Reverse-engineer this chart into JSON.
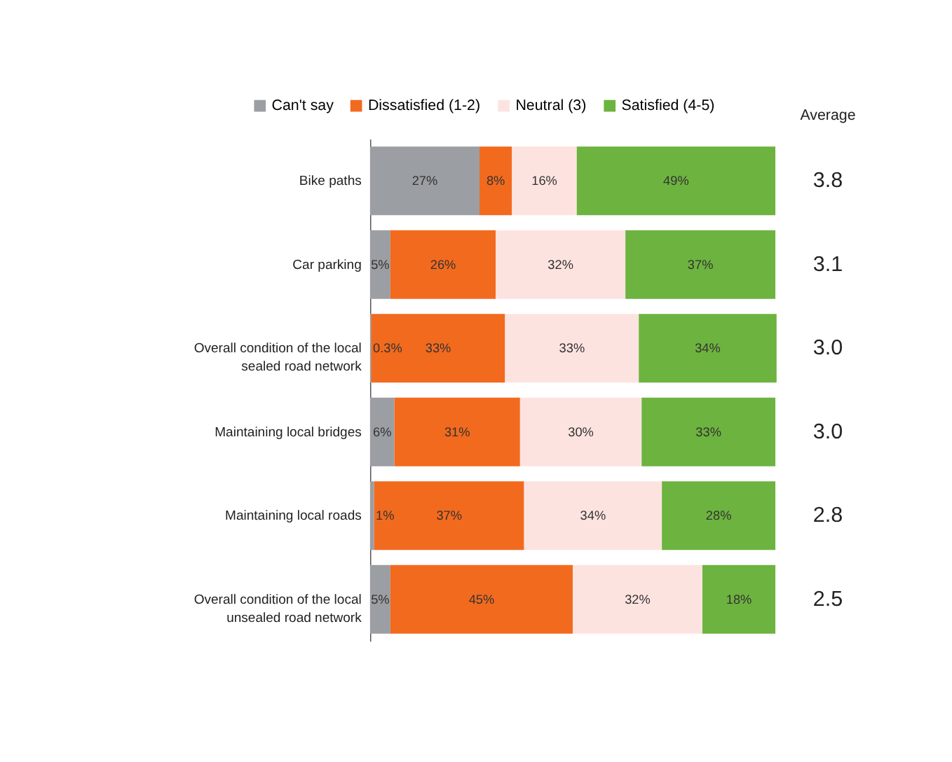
{
  "chart_data": {
    "type": "bar",
    "orientation": "horizontal",
    "stacked": true,
    "legend": "top",
    "categories": [
      "Bike paths",
      "Car parking",
      "Overall condition of the local sealed road network",
      "Maintaining local bridges",
      "Maintaining local roads",
      "Overall condition of the local unsealed road network"
    ],
    "series": [
      {
        "name": "Can't say",
        "color": "#9b9ea2",
        "values": [
          27,
          5,
          0.3,
          6,
          1,
          5
        ],
        "value_labels": [
          "27%",
          "5%",
          "0.3%",
          "6%",
          "1%",
          "5%"
        ]
      },
      {
        "name": "Dissatisfied (1-2)",
        "color": "#f26a1e",
        "values": [
          8,
          26,
          33,
          31,
          37,
          45
        ],
        "value_labels": [
          "8%",
          "26%",
          "33%",
          "31%",
          "37%",
          "45%"
        ]
      },
      {
        "name": "Neutral (3)",
        "color": "#fde3e0",
        "values": [
          16,
          32,
          33,
          30,
          34,
          32
        ],
        "value_labels": [
          "16%",
          "32%",
          "33%",
          "30%",
          "34%",
          "32%"
        ]
      },
      {
        "name": "Satisfied (4-5)",
        "color": "#6db33f",
        "values": [
          49,
          37,
          34,
          33,
          28,
          18
        ],
        "value_labels": [
          "49%",
          "37%",
          "34%",
          "33%",
          "28%",
          "18%"
        ]
      }
    ],
    "annotations": [
      "Average",
      "3.8",
      "3.1",
      "3.0",
      "3.0",
      "2.8",
      "2.5"
    ]
  }
}
